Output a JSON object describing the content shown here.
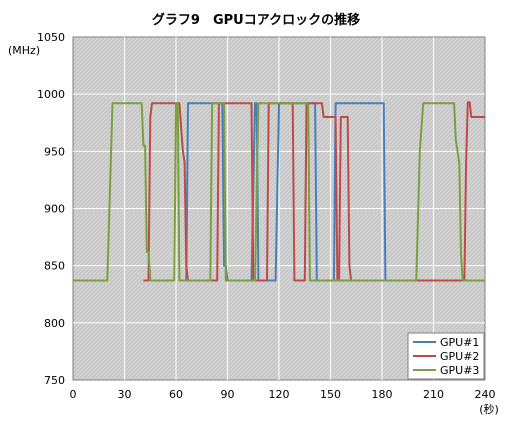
{
  "chart_data": {
    "type": "line",
    "title": "グラフ9　GPUコアクロックの推移",
    "ylabel": "(MHz)",
    "xlabel": "(秒)",
    "xlim": [
      0,
      240
    ],
    "ylim": [
      750,
      1050
    ],
    "xticks": [
      0,
      30,
      60,
      90,
      120,
      150,
      180,
      210,
      240
    ],
    "yticks": [
      750,
      800,
      850,
      900,
      950,
      1000,
      1050
    ],
    "grid": true,
    "legend": "bottom-right",
    "series": [
      {
        "name": "GPU#1",
        "color": "#4a7ebb",
        "points": [
          [
            62,
            837
          ],
          [
            66,
            837
          ],
          [
            67,
            992
          ],
          [
            87,
            992
          ],
          [
            88,
            850
          ],
          [
            89,
            850
          ],
          [
            90,
            837
          ],
          [
            104,
            837
          ],
          [
            106,
            992
          ],
          [
            107,
            992
          ],
          [
            108,
            837
          ],
          [
            118,
            837
          ],
          [
            120,
            992
          ],
          [
            141,
            992
          ],
          [
            142,
            837
          ],
          [
            152,
            837
          ],
          [
            153,
            992
          ],
          [
            181,
            992
          ],
          [
            182,
            837
          ]
        ]
      },
      {
        "name": "GPU#2",
        "color": "#be4b48",
        "points": [
          [
            41,
            837
          ],
          [
            44,
            837
          ],
          [
            45,
            980
          ],
          [
            46,
            992
          ],
          [
            62,
            992
          ],
          [
            64,
            950
          ],
          [
            65,
            940
          ],
          [
            66,
            850
          ],
          [
            67,
            837
          ],
          [
            84,
            837
          ],
          [
            85,
            992
          ],
          [
            104,
            992
          ],
          [
            105,
            837
          ],
          [
            113,
            837
          ],
          [
            114,
            992
          ],
          [
            128,
            992
          ],
          [
            129,
            837
          ],
          [
            135,
            837
          ],
          [
            136,
            992
          ],
          [
            145,
            992
          ],
          [
            146,
            980
          ],
          [
            153,
            980
          ],
          [
            154,
            837
          ],
          [
            155,
            837
          ],
          [
            156,
            980
          ],
          [
            160,
            980
          ],
          [
            161,
            850
          ],
          [
            162,
            837
          ],
          [
            228,
            837
          ],
          [
            229,
            940
          ],
          [
            230,
            993
          ],
          [
            231,
            993
          ],
          [
            232,
            980
          ],
          [
            240,
            980
          ]
        ]
      },
      {
        "name": "GPU#3",
        "color": "#7aa03f",
        "points": [
          [
            0,
            837
          ],
          [
            20,
            837
          ],
          [
            23,
            992
          ],
          [
            40,
            992
          ],
          [
            41,
            955
          ],
          [
            42,
            955
          ],
          [
            43,
            862
          ],
          [
            44,
            862
          ],
          [
            45,
            837
          ],
          [
            59,
            837
          ],
          [
            60,
            992
          ],
          [
            61,
            992
          ],
          [
            62,
            837
          ],
          [
            80,
            837
          ],
          [
            81,
            992
          ],
          [
            88,
            992
          ],
          [
            89,
            837
          ],
          [
            106,
            837
          ],
          [
            108,
            992
          ],
          [
            137,
            992
          ],
          [
            138,
            837
          ],
          [
            200,
            837
          ],
          [
            202,
            950
          ],
          [
            204,
            992
          ],
          [
            222,
            992
          ],
          [
            223,
            960
          ],
          [
            225,
            940
          ],
          [
            226,
            860
          ],
          [
            227,
            837
          ],
          [
            240,
            837
          ]
        ]
      }
    ]
  }
}
